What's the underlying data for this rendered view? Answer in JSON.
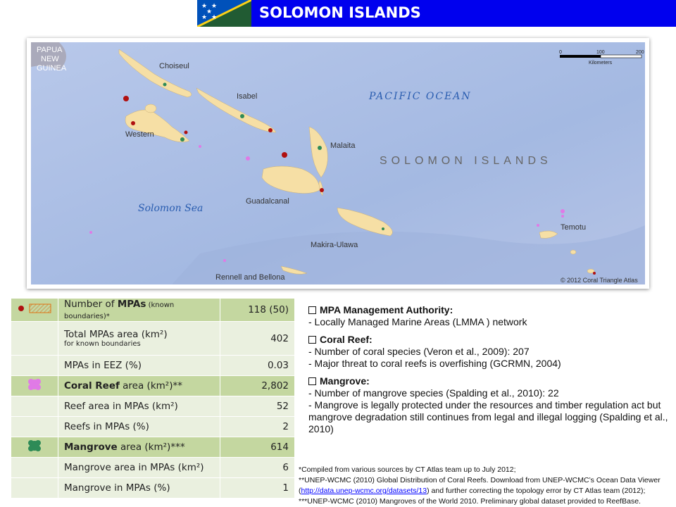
{
  "header": {
    "title": "SOLOMON ISLANDS",
    "flag": "solomon-islands-flag"
  },
  "map": {
    "labels": {
      "png": [
        "PAPUA",
        "NEW",
        "GUINEA"
      ],
      "choiseul": "Choiseul",
      "isabel": "Isabel",
      "western": "Western",
      "malaita": "Malaita",
      "guadalcanal": "Guadalcanal",
      "makira": "Makira-Ulawa",
      "rennell": "Rennell and Bellona",
      "temotu": "Temotu",
      "pacific": "PACIFIC OCEAN",
      "solomon_sea": "Solomon Sea",
      "country": "SOLOMON ISLANDS",
      "copyright": "© 2012 Coral  Triangle Atlas"
    },
    "scale": {
      "ticks": [
        "0",
        "100",
        "200"
      ],
      "unit": "Kilometers"
    },
    "colors": {
      "ocean": "#a9bde3",
      "land": "#f6dfa5",
      "reef": "#e07ae6",
      "mangrove": "#2e8b57",
      "mpa": "#b01010"
    }
  },
  "stats": {
    "rows": [
      {
        "type": "header",
        "icon": "mpa-legend-icon",
        "bold": "MPAs",
        "pre": "Number of ",
        "post": "",
        "small": " (known boundaries)*",
        "value": "118 (50)"
      },
      {
        "type": "normal",
        "label": "Total MPAs area (km²)",
        "sub": "for known boundaries",
        "value": "402"
      },
      {
        "type": "normal",
        "label": "MPAs in EEZ (%)",
        "value": "0.03"
      },
      {
        "type": "header",
        "icon": "coral-reef-icon",
        "bold": "Coral Reef",
        "pre": "",
        "post": " area (km²)**",
        "value": "2,802"
      },
      {
        "type": "normal",
        "label": "Reef area in MPAs (km²)",
        "value": "52"
      },
      {
        "type": "normal",
        "label": "Reefs in MPAs (%)",
        "value": "2"
      },
      {
        "type": "header",
        "icon": "mangrove-icon",
        "bold": "Mangrove",
        "pre": "",
        "post": " area (km²)***",
        "value": "614"
      },
      {
        "type": "normal",
        "label": "Mangrove area in MPAs (km²)",
        "value": "6"
      },
      {
        "type": "normal",
        "label": "Mangrove in MPAs (%)",
        "value": "1"
      }
    ]
  },
  "info": {
    "mpa": {
      "title": "MPA Management Authority:",
      "lines": [
        "- Locally Managed Marine Areas (LMMA ) network"
      ]
    },
    "coral": {
      "title": "Coral Reef:",
      "lines": [
        "- Number of coral species (Veron et al., 2009): 207",
        "- Major threat to coral reefs is overfishing (GCRMN, 2004)"
      ]
    },
    "mangrove": {
      "title": "Mangrove:",
      "lines": [
        "- Number of mangrove species (Spalding et al., 2010): 22",
        "- Mangrove is legally protected under the resources and timber regulation act but mangrove degradation still continues from legal and illegal logging (Spalding et al., 2010)"
      ]
    }
  },
  "notes": {
    "n1": "*Compiled from various sources by CT Atlas team up to July 2012;",
    "n2": "**UNEP-WCMC (2010) Global Distribution of Coral Reefs. Download from UNEP-WCMC’s Ocean Data Viewer",
    "link": "http://data.unep-wcmc.org/datasets/13",
    "n2b": " and further correcting the topology error by CT Atlas team (2012);",
    "n3": "***UNEP-WCMC (2010) Mangroves of the World 2010. Preliminary global dataset provided to ReefBase."
  }
}
